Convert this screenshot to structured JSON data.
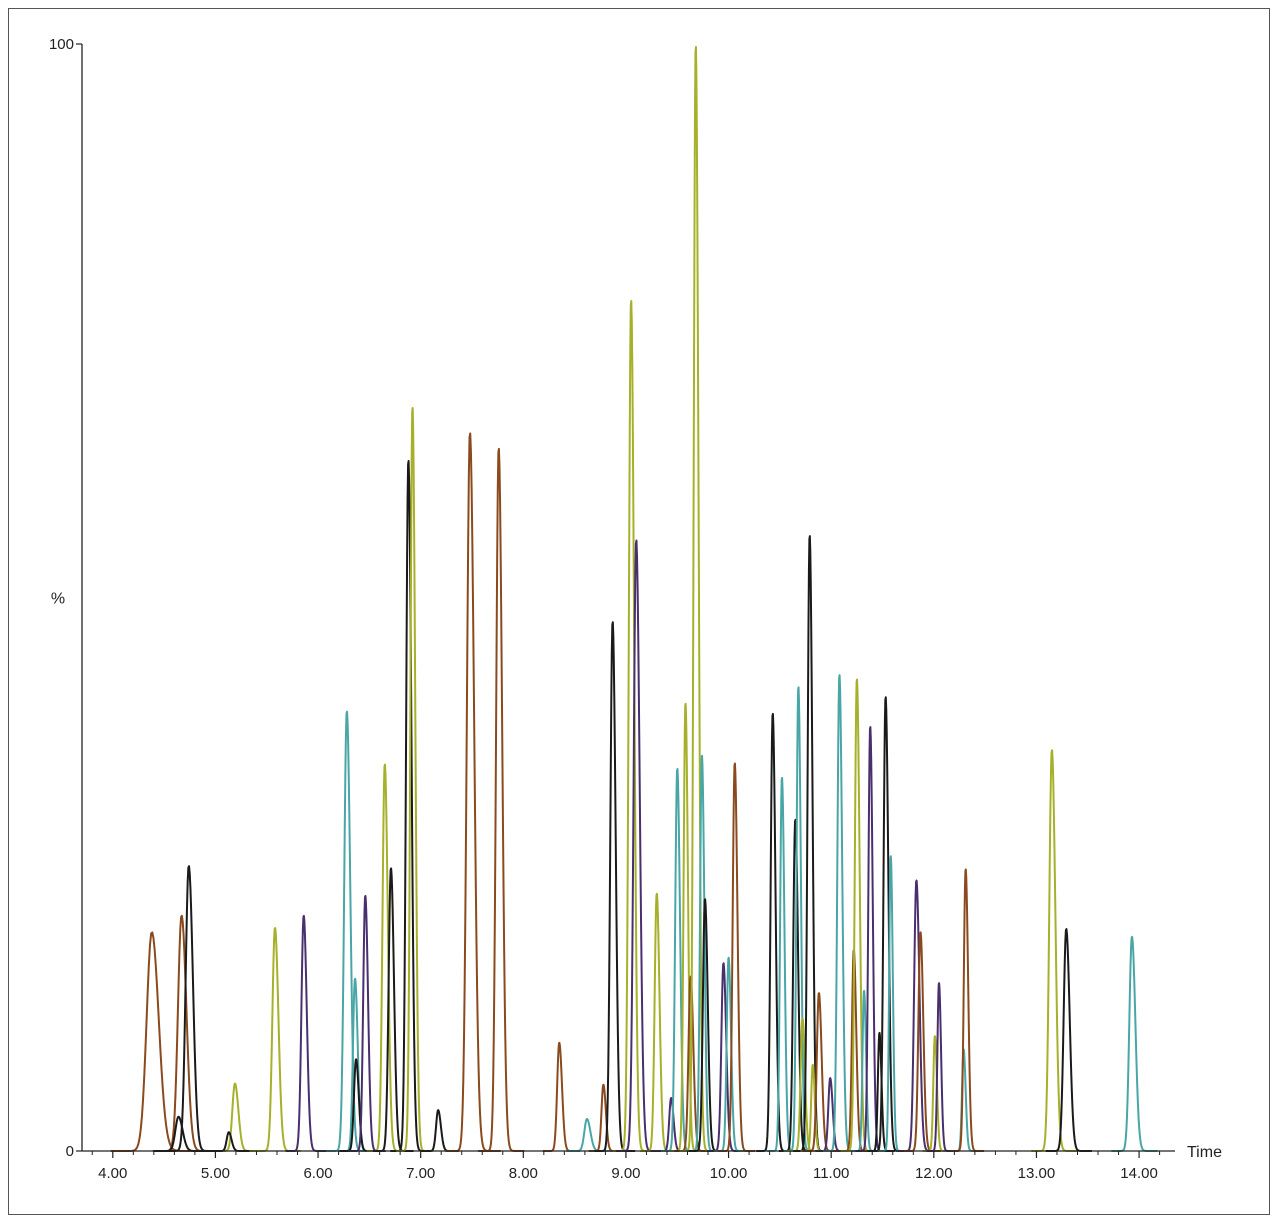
{
  "chart_data": {
    "type": "line",
    "xlabel": "Time",
    "ylabel": "%",
    "xlim": [
      3.7,
      14.35
    ],
    "ylim": [
      0,
      100
    ],
    "x_ticks": [
      "4.00",
      "5.00",
      "6.00",
      "7.00",
      "8.00",
      "9.00",
      "10.00",
      "11.00",
      "12.00",
      "13.00",
      "14.00"
    ],
    "y_tick_labels": [
      "0",
      "100"
    ],
    "grid": false,
    "legend": "none",
    "colors": {
      "brown": "#8b4a1e",
      "black": "#1a1a1a",
      "olive": "#a6b02a",
      "purple": "#4a2f6e",
      "teal": "#4aa6a6"
    },
    "peaks": [
      {
        "color": "brown",
        "rt": 4.38,
        "height": 19.8,
        "width": 0.05
      },
      {
        "color": "brown",
        "rt": 4.67,
        "height": 21.3,
        "width": 0.035
      },
      {
        "color": "black",
        "rt": 4.64,
        "height": 3.1,
        "width": 0.03
      },
      {
        "color": "black",
        "rt": 4.74,
        "height": 25.8,
        "width": 0.03
      },
      {
        "color": "olive",
        "rt": 5.19,
        "height": 6.1,
        "width": 0.025
      },
      {
        "color": "black",
        "rt": 5.13,
        "height": 1.7,
        "width": 0.02
      },
      {
        "color": "olive",
        "rt": 5.58,
        "height": 20.2,
        "width": 0.025
      },
      {
        "color": "purple",
        "rt": 5.86,
        "height": 21.3,
        "width": 0.022
      },
      {
        "color": "teal",
        "rt": 6.28,
        "height": 39.8,
        "width": 0.025
      },
      {
        "color": "teal",
        "rt": 6.36,
        "height": 15.6,
        "width": 0.02
      },
      {
        "color": "black",
        "rt": 6.37,
        "height": 8.3,
        "width": 0.02
      },
      {
        "color": "purple",
        "rt": 6.46,
        "height": 23.1,
        "width": 0.02
      },
      {
        "color": "olive",
        "rt": 6.65,
        "height": 35.0,
        "width": 0.022
      },
      {
        "color": "black",
        "rt": 6.71,
        "height": 25.6,
        "width": 0.022
      },
      {
        "color": "black",
        "rt": 6.88,
        "height": 62.5,
        "width": 0.022
      },
      {
        "color": "olive",
        "rt": 6.92,
        "height": 67.3,
        "width": 0.02
      },
      {
        "color": "black",
        "rt": 7.17,
        "height": 3.7,
        "width": 0.02
      },
      {
        "color": "brown",
        "rt": 7.48,
        "height": 65.0,
        "width": 0.03
      },
      {
        "color": "brown",
        "rt": 7.76,
        "height": 63.6,
        "width": 0.025
      },
      {
        "color": "brown",
        "rt": 8.35,
        "height": 9.8,
        "width": 0.02
      },
      {
        "color": "teal",
        "rt": 8.62,
        "height": 2.9,
        "width": 0.025
      },
      {
        "color": "brown",
        "rt": 8.78,
        "height": 6.0,
        "width": 0.018
      },
      {
        "color": "black",
        "rt": 8.87,
        "height": 47.9,
        "width": 0.022
      },
      {
        "color": "olive",
        "rt": 9.05,
        "height": 77.0,
        "width": 0.022
      },
      {
        "color": "purple",
        "rt": 9.1,
        "height": 55.3,
        "width": 0.025
      },
      {
        "color": "olive",
        "rt": 9.3,
        "height": 23.3,
        "width": 0.02
      },
      {
        "color": "purple",
        "rt": 9.44,
        "height": 4.8,
        "width": 0.018
      },
      {
        "color": "teal",
        "rt": 9.5,
        "height": 34.6,
        "width": 0.02
      },
      {
        "color": "olive",
        "rt": 9.58,
        "height": 40.5,
        "width": 0.018
      },
      {
        "color": "brown",
        "rt": 9.63,
        "height": 15.8,
        "width": 0.02
      },
      {
        "color": "olive",
        "rt": 9.68,
        "height": 100.0,
        "width": 0.02
      },
      {
        "color": "teal",
        "rt": 9.74,
        "height": 35.8,
        "width": 0.018
      },
      {
        "color": "black",
        "rt": 9.77,
        "height": 22.8,
        "width": 0.02
      },
      {
        "color": "purple",
        "rt": 9.95,
        "height": 17.0,
        "width": 0.02
      },
      {
        "color": "teal",
        "rt": 10.0,
        "height": 17.5,
        "width": 0.018
      },
      {
        "color": "brown",
        "rt": 10.06,
        "height": 35.1,
        "width": 0.02
      },
      {
        "color": "black",
        "rt": 10.43,
        "height": 39.6,
        "width": 0.02
      },
      {
        "color": "teal",
        "rt": 10.52,
        "height": 33.8,
        "width": 0.018
      },
      {
        "color": "black",
        "rt": 10.65,
        "height": 30.0,
        "width": 0.02
      },
      {
        "color": "teal",
        "rt": 10.68,
        "height": 42.0,
        "width": 0.018
      },
      {
        "color": "olive",
        "rt": 10.72,
        "height": 12.0,
        "width": 0.018
      },
      {
        "color": "black",
        "rt": 10.79,
        "height": 55.7,
        "width": 0.02
      },
      {
        "color": "olive",
        "rt": 10.82,
        "height": 7.8,
        "width": 0.015
      },
      {
        "color": "brown",
        "rt": 10.88,
        "height": 14.3,
        "width": 0.02
      },
      {
        "color": "purple",
        "rt": 10.99,
        "height": 6.6,
        "width": 0.018
      },
      {
        "color": "teal",
        "rt": 11.08,
        "height": 43.1,
        "width": 0.02
      },
      {
        "color": "brown",
        "rt": 11.22,
        "height": 18.2,
        "width": 0.018
      },
      {
        "color": "olive",
        "rt": 11.25,
        "height": 42.7,
        "width": 0.02
      },
      {
        "color": "teal",
        "rt": 11.32,
        "height": 14.5,
        "width": 0.015
      },
      {
        "color": "purple",
        "rt": 11.38,
        "height": 38.4,
        "width": 0.018
      },
      {
        "color": "black",
        "rt": 11.47,
        "height": 10.7,
        "width": 0.015
      },
      {
        "color": "black",
        "rt": 11.53,
        "height": 41.1,
        "width": 0.02
      },
      {
        "color": "teal",
        "rt": 11.58,
        "height": 26.7,
        "width": 0.015
      },
      {
        "color": "purple",
        "rt": 11.83,
        "height": 24.5,
        "width": 0.022
      },
      {
        "color": "brown",
        "rt": 11.87,
        "height": 19.8,
        "width": 0.02
      },
      {
        "color": "olive",
        "rt": 12.01,
        "height": 10.4,
        "width": 0.015
      },
      {
        "color": "purple",
        "rt": 12.05,
        "height": 15.2,
        "width": 0.015
      },
      {
        "color": "teal",
        "rt": 12.29,
        "height": 9.2,
        "width": 0.015
      },
      {
        "color": "brown",
        "rt": 12.31,
        "height": 25.5,
        "width": 0.018
      },
      {
        "color": "olive",
        "rt": 13.15,
        "height": 36.3,
        "width": 0.025
      },
      {
        "color": "black",
        "rt": 13.29,
        "height": 20.1,
        "width": 0.025
      },
      {
        "color": "teal",
        "rt": 13.93,
        "height": 19.4,
        "width": 0.025
      }
    ]
  }
}
